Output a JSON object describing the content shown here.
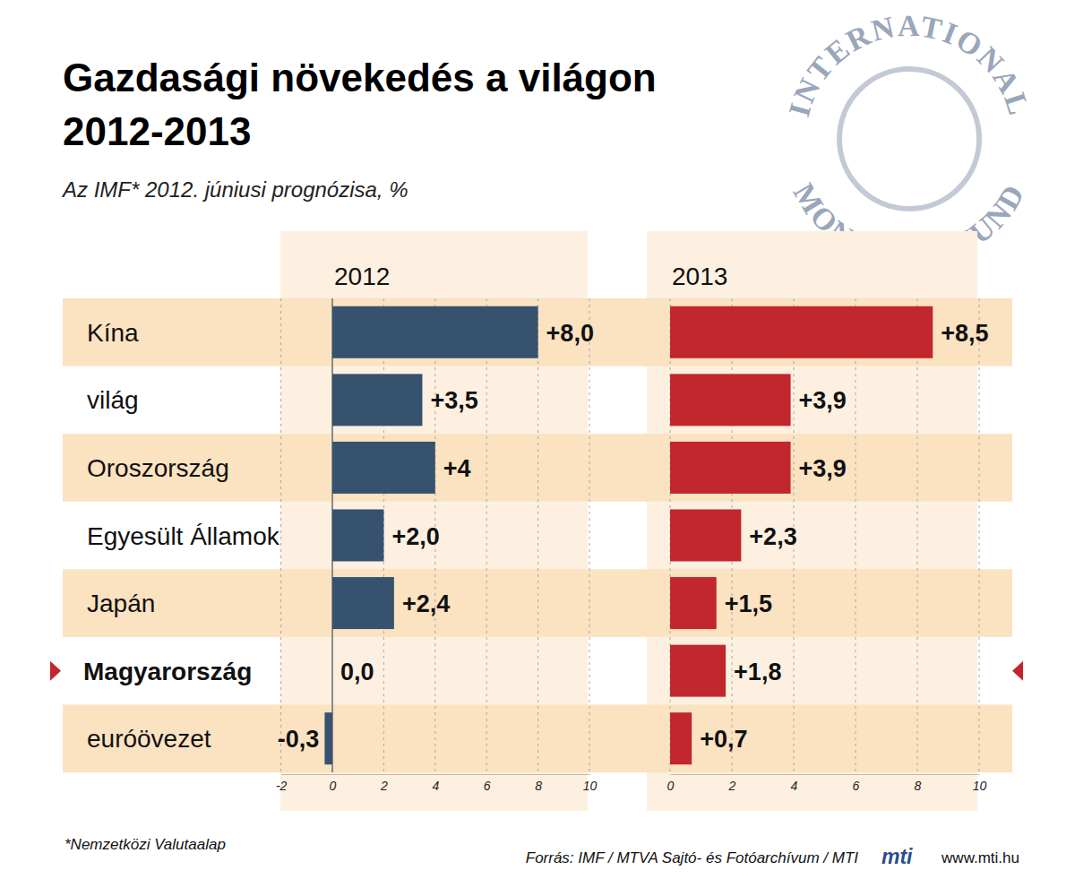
{
  "title": [
    "Gazdasági növekedés a világon",
    "2012-2013"
  ],
  "subtitle": "Az IMF* 2012. júniusi prognózisa, %",
  "footnote": "*Nemzetközi Valutaalap",
  "source": "Forrás: IMF / MTVA Sajtó- és Fotóarchívum / MTI",
  "logo": "mti",
  "url": "www.mti.hu",
  "watermark": [
    "INTERNATIONAL",
    "MONETARY FUND"
  ],
  "chart_data": [
    {
      "type": "bar",
      "orientation": "horizontal",
      "title": "2012",
      "categories": [
        "Kína",
        "világ",
        "Oroszország",
        "Egyesült Államok",
        "Japán",
        "Magyarország",
        "euróövezet"
      ],
      "values": [
        8.0,
        3.5,
        4,
        2.0,
        2.4,
        0.0,
        -0.3
      ],
      "value_labels": [
        "+8,0",
        "+3,5",
        "+4",
        "+2,0",
        "+2,4",
        "0,0",
        "-0,3"
      ],
      "color": "#36526f",
      "xlim": [
        -2,
        10
      ],
      "xticks": [
        -2,
        0,
        2,
        4,
        6,
        8,
        10
      ],
      "grid": true,
      "data_labels": true
    },
    {
      "type": "bar",
      "orientation": "horizontal",
      "title": "2013",
      "values": [
        8.5,
        3.9,
        3.9,
        2.3,
        1.5,
        1.8,
        0.7
      ],
      "value_labels": [
        "+8,5",
        "+3,9",
        "+3,9",
        "+2,3",
        "+1,5",
        "+1,8",
        "+0,7"
      ],
      "color": "#c1272d",
      "xlim": [
        0,
        10
      ],
      "xticks": [
        0,
        2,
        4,
        6,
        8,
        10
      ],
      "grid": true,
      "data_labels": true
    }
  ]
}
